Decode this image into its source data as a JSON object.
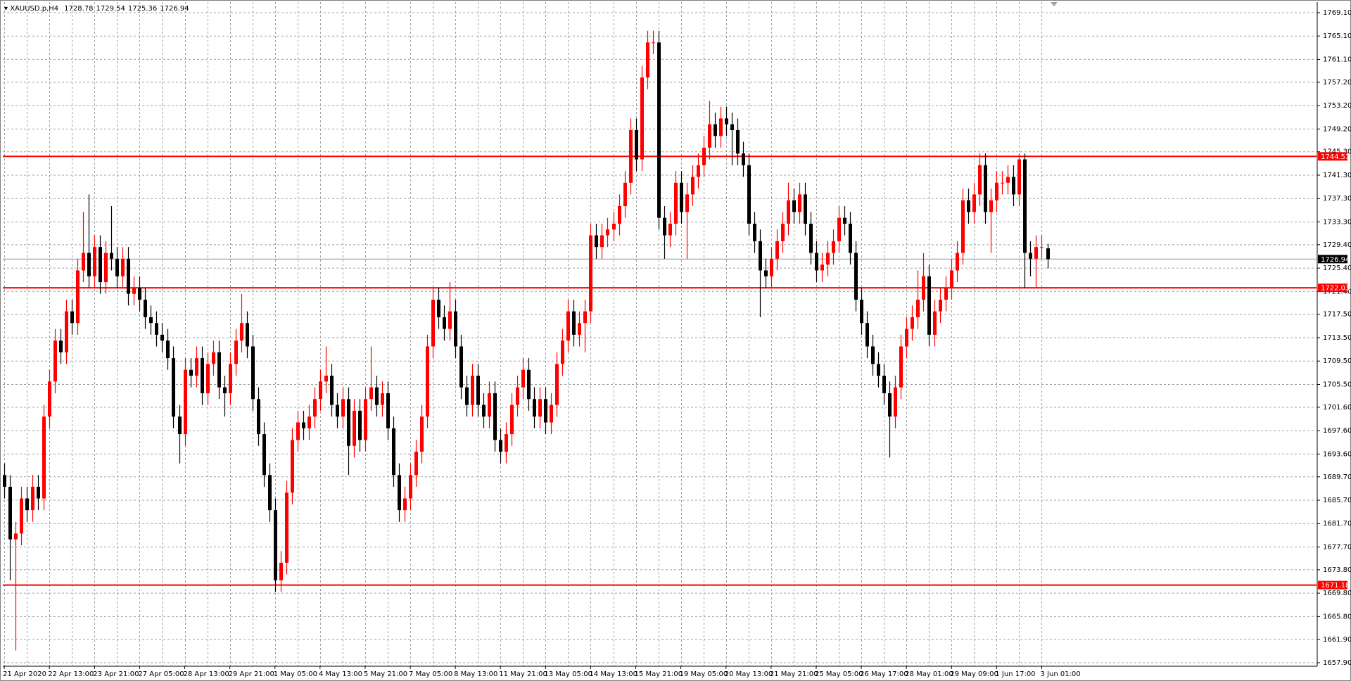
{
  "chart_data": {
    "type": "candlestick",
    "symbol": "XAUUSD.p,H4",
    "up_color": "#ff0000",
    "down_color": "#000000",
    "grid": true,
    "ylim": [
      1657.3,
      1770.9
    ],
    "yticks": [
      {
        "value": 1769.1,
        "label": "1769.10"
      },
      {
        "value": 1765.1,
        "label": "1765.10"
      },
      {
        "value": 1761.1,
        "label": "1761.10"
      },
      {
        "value": 1757.2,
        "label": "1757.20"
      },
      {
        "value": 1753.2,
        "label": "1753.20"
      },
      {
        "value": 1749.2,
        "label": "1749.20"
      },
      {
        "value": 1745.3,
        "label": "1745.30"
      },
      {
        "value": 1741.3,
        "label": "1741.30"
      },
      {
        "value": 1737.3,
        "label": "1737.30"
      },
      {
        "value": 1733.3,
        "label": "1733.30"
      },
      {
        "value": 1729.4,
        "label": "1729.40"
      },
      {
        "value": 1725.4,
        "label": "1725.40"
      },
      {
        "value": 1721.4,
        "label": "1721.40"
      },
      {
        "value": 1717.5,
        "label": "1717.50"
      },
      {
        "value": 1713.5,
        "label": "1713.50"
      },
      {
        "value": 1709.5,
        "label": "1709.50"
      },
      {
        "value": 1705.5,
        "label": "1705.50"
      },
      {
        "value": 1701.6,
        "label": "1701.60"
      },
      {
        "value": 1697.6,
        "label": "1697.60"
      },
      {
        "value": 1693.6,
        "label": "1693.60"
      },
      {
        "value": 1689.7,
        "label": "1689.70"
      },
      {
        "value": 1685.7,
        "label": "1685.70"
      },
      {
        "value": 1681.7,
        "label": "1681.70"
      },
      {
        "value": 1677.7,
        "label": "1677.70"
      },
      {
        "value": 1673.8,
        "label": "1673.80"
      },
      {
        "value": 1669.8,
        "label": "1669.80"
      },
      {
        "value": 1665.8,
        "label": "1665.80"
      },
      {
        "value": 1661.9,
        "label": "1661.90"
      },
      {
        "value": 1657.9,
        "label": "1657.90"
      }
    ],
    "hlines": [
      {
        "value": 1744.51,
        "color": "#ff0000"
      },
      {
        "value": 1726.94,
        "color": "#8497b0"
      },
      {
        "value": 1722.03,
        "color": "#ff0000"
      },
      {
        "value": 1671.18,
        "color": "#ff0000"
      }
    ],
    "categories": [
      "21 Apr 2020",
      null,
      null,
      null,
      null,
      null,
      null,
      null,
      "22 Apr 13:00",
      null,
      null,
      null,
      null,
      null,
      null,
      null,
      "23 Apr 21:00",
      null,
      null,
      null,
      null,
      null,
      null,
      null,
      "27 Apr 05:00",
      null,
      null,
      null,
      null,
      null,
      null,
      null,
      "28 Apr 13:00",
      null,
      null,
      null,
      null,
      null,
      null,
      null,
      "29 Apr 21:00",
      null,
      null,
      null,
      null,
      null,
      null,
      null,
      "1 May 05:00",
      null,
      null,
      null,
      null,
      null,
      null,
      null,
      "4 May 13:00",
      null,
      null,
      null,
      null,
      null,
      null,
      null,
      "5 May 21:00",
      null,
      null,
      null,
      null,
      null,
      null,
      null,
      "7 May 05:00",
      null,
      null,
      null,
      null,
      null,
      null,
      null,
      "8 May 13:00",
      null,
      null,
      null,
      null,
      null,
      null,
      null,
      "11 May 21:00",
      null,
      null,
      null,
      null,
      null,
      null,
      null,
      "13 May 05:00",
      null,
      null,
      null,
      null,
      null,
      null,
      null,
      "14 May 13:00",
      null,
      null,
      null,
      null,
      null,
      null,
      null,
      "15 May 21:00",
      null,
      null,
      null,
      null,
      null,
      null,
      null,
      "19 May 05:00",
      null,
      null,
      null,
      null,
      null,
      null,
      null,
      "20 May 13:00",
      null,
      null,
      null,
      null,
      null,
      null,
      null,
      "21 May 21:00",
      null,
      null,
      null,
      null,
      null,
      null,
      null,
      "25 May 05:00",
      null,
      null,
      null,
      null,
      null,
      null,
      null,
      "26 May 17:00",
      null,
      null,
      null,
      null,
      null,
      null,
      null,
      "28 May 01:00",
      null,
      null,
      null,
      null,
      null,
      null,
      null,
      "29 May 09:00",
      null,
      null,
      null,
      null,
      null,
      null,
      null,
      "1 Jun 17:00",
      null,
      null,
      null,
      null,
      null,
      null,
      null,
      "3 Jun 01:00",
      null
    ],
    "open": [
      1690,
      1688,
      1679,
      1680,
      1686,
      1684,
      1688,
      1686,
      1700,
      1706,
      1713,
      1711,
      1718,
      1716,
      1725,
      1728,
      1724,
      1729,
      1723,
      1728,
      1727,
      1724,
      1727,
      1721,
      1722,
      1720,
      1717,
      1716,
      1714,
      1713,
      1710,
      1700,
      1697,
      1708,
      1707,
      1710,
      1704,
      1709,
      1711,
      1705,
      1704,
      1709,
      1713,
      1716,
      1712,
      1703,
      1697,
      1690,
      1684,
      1672,
      1675,
      1687,
      1696,
      1699,
      1698,
      1700,
      1703,
      1706,
      1707,
      1702,
      1700,
      1703,
      1695,
      1701,
      1696,
      1703,
      1705,
      1702,
      1704,
      1698,
      1690,
      1684,
      1686,
      1690,
      1694,
      1700,
      1712,
      1720,
      1717,
      1715,
      1718,
      1712,
      1705,
      1702,
      1707,
      1702,
      1700,
      1704,
      1696,
      1694,
      1697,
      1702,
      1705,
      1708,
      1703,
      1700,
      1703,
      1699,
      1702,
      1709,
      1713,
      1718,
      1714,
      1716,
      1718,
      1731,
      1729,
      1731,
      1732,
      1733,
      1736,
      1740,
      1749,
      1744,
      1758,
      1764,
      1764,
      1734,
      1731,
      1733,
      1740,
      1735,
      1738,
      1741,
      1743,
      1746,
      1750,
      1748,
      1751,
      1750,
      1749,
      1745,
      1743,
      1733,
      1730,
      1725,
      1724,
      1727,
      1730,
      1733,
      1737,
      1735,
      1738,
      1733,
      1728,
      1725,
      1726,
      1728,
      1730,
      1734,
      1733,
      1728,
      1720,
      1716,
      1712,
      1709,
      1707,
      1704,
      1700,
      1705,
      1712,
      1715,
      1717,
      1720,
      1724,
      1714,
      1718,
      1720,
      1722,
      1725,
      1728,
      1737,
      1735,
      1738,
      1743,
      1735,
      1737,
      1740,
      1740,
      1741,
      1738,
      1744,
      1728,
      1727,
      1729,
      1728.78
    ],
    "high": [
      1692,
      1690,
      1682,
      1688,
      1688,
      1690,
      1690,
      1702,
      1708,
      1715,
      1715,
      1720,
      1720,
      1727,
      1735,
      1738,
      1731,
      1731,
      1730,
      1736,
      1729,
      1729,
      1729,
      1724,
      1724,
      1722,
      1719,
      1718,
      1716,
      1715,
      1712,
      1702,
      1710,
      1710,
      1712,
      1712,
      1711,
      1713,
      1713,
      1707,
      1711,
      1715,
      1721,
      1718,
      1714,
      1705,
      1699,
      1692,
      1686,
      1677,
      1689,
      1698,
      1701,
      1701,
      1702,
      1705,
      1708,
      1712,
      1709,
      1704,
      1705,
      1705,
      1703,
      1703,
      1705,
      1712,
      1707,
      1706,
      1706,
      1700,
      1692,
      1688,
      1692,
      1696,
      1702,
      1714,
      1722,
      1722,
      1719,
      1723,
      1720,
      1714,
      1707,
      1709,
      1709,
      1704,
      1706,
      1706,
      1698,
      1699,
      1704,
      1707,
      1710,
      1710,
      1705,
      1705,
      1705,
      1704,
      1711,
      1715,
      1720,
      1720,
      1718,
      1720,
      1733,
      1733,
      1733,
      1734,
      1735,
      1738,
      1742,
      1751,
      1751,
      1760,
      1766,
      1766,
      1766,
      1736,
      1735,
      1742,
      1742,
      1740,
      1743,
      1745,
      1748,
      1754,
      1752,
      1753,
      1753,
      1752,
      1751,
      1747,
      1745,
      1735,
      1732,
      1727,
      1729,
      1732,
      1735,
      1740,
      1739,
      1740,
      1740,
      1735,
      1730,
      1728,
      1730,
      1732,
      1736,
      1736,
      1735,
      1730,
      1722,
      1718,
      1714,
      1711,
      1709,
      1706,
      1707,
      1714,
      1717,
      1719,
      1725,
      1728,
      1726,
      1720,
      1722,
      1724,
      1727,
      1730,
      1739,
      1739,
      1740,
      1745,
      1745,
      1739,
      1742,
      1742,
      1743,
      1743,
      1745,
      1745,
      1730,
      1731,
      1731,
      1729.54
    ],
    "low": [
      1686,
      1672,
      1660,
      1678,
      1682,
      1682,
      1684,
      1684,
      1698,
      1704,
      1709,
      1709,
      1714,
      1714,
      1723,
      1722,
      1722,
      1721,
      1721,
      1725,
      1722,
      1722,
      1719,
      1719,
      1718,
      1715,
      1714,
      1712,
      1711,
      1708,
      1698,
      1692,
      1695,
      1705,
      1705,
      1702,
      1702,
      1707,
      1703,
      1700,
      1702,
      1707,
      1711,
      1710,
      1701,
      1695,
      1688,
      1682,
      1670,
      1670,
      1673,
      1685,
      1694,
      1696,
      1696,
      1698,
      1701,
      1704,
      1700,
      1698,
      1698,
      1690,
      1693,
      1694,
      1694,
      1701,
      1700,
      1700,
      1696,
      1688,
      1682,
      1682,
      1684,
      1688,
      1692,
      1698,
      1710,
      1715,
      1713,
      1713,
      1710,
      1703,
      1700,
      1700,
      1700,
      1698,
      1698,
      1694,
      1692,
      1692,
      1695,
      1700,
      1703,
      1701,
      1698,
      1698,
      1697,
      1697,
      1700,
      1707,
      1711,
      1712,
      1712,
      1711,
      1716,
      1727,
      1727,
      1729,
      1730,
      1731,
      1734,
      1738,
      1742,
      1742,
      1756,
      1762,
      1732,
      1727,
      1729,
      1731,
      1733,
      1727,
      1736,
      1739,
      1741,
      1744,
      1746,
      1746,
      1748,
      1743,
      1743,
      1741,
      1731,
      1728,
      1717,
      1722,
      1722,
      1725,
      1728,
      1731,
      1733,
      1733,
      1731,
      1726,
      1723,
      1723,
      1724,
      1726,
      1728,
      1731,
      1726,
      1718,
      1714,
      1710,
      1707,
      1705,
      1702,
      1693,
      1698,
      1703,
      1710,
      1713,
      1715,
      1718,
      1712,
      1712,
      1716,
      1718,
      1720,
      1723,
      1726,
      1733,
      1733,
      1736,
      1733,
      1728,
      1735,
      1738,
      1738,
      1736,
      1736,
      1722,
      1724,
      1722,
      1727,
      1725.36
    ],
    "close": [
      1688,
      1679,
      1680,
      1686,
      1684,
      1688,
      1686,
      1700,
      1706,
      1713,
      1711,
      1718,
      1716,
      1725,
      1728,
      1724,
      1729,
      1723,
      1728,
      1727,
      1724,
      1727,
      1721,
      1722,
      1720,
      1717,
      1716,
      1714,
      1713,
      1710,
      1700,
      1697,
      1708,
      1707,
      1710,
      1704,
      1709,
      1711,
      1705,
      1704,
      1709,
      1713,
      1716,
      1712,
      1703,
      1697,
      1690,
      1684,
      1672,
      1675,
      1687,
      1696,
      1699,
      1698,
      1700,
      1703,
      1706,
      1707,
      1702,
      1700,
      1703,
      1695,
      1701,
      1696,
      1703,
      1705,
      1702,
      1704,
      1698,
      1690,
      1684,
      1686,
      1690,
      1694,
      1700,
      1712,
      1720,
      1717,
      1715,
      1718,
      1712,
      1705,
      1702,
      1707,
      1702,
      1700,
      1704,
      1696,
      1694,
      1697,
      1702,
      1705,
      1708,
      1703,
      1700,
      1703,
      1699,
      1702,
      1709,
      1713,
      1718,
      1714,
      1716,
      1718,
      1731,
      1729,
      1731,
      1732,
      1733,
      1736,
      1740,
      1749,
      1744,
      1758,
      1764,
      1764,
      1734,
      1731,
      1733,
      1740,
      1735,
      1738,
      1741,
      1743,
      1746,
      1750,
      1748,
      1751,
      1750,
      1749,
      1745,
      1743,
      1733,
      1730,
      1725,
      1724,
      1727,
      1730,
      1733,
      1737,
      1735,
      1738,
      1733,
      1728,
      1725,
      1726,
      1728,
      1730,
      1734,
      1733,
      1728,
      1720,
      1716,
      1712,
      1709,
      1707,
      1704,
      1700,
      1705,
      1712,
      1715,
      1717,
      1720,
      1724,
      1714,
      1718,
      1720,
      1722,
      1725,
      1728,
      1737,
      1735,
      1738,
      1743,
      1735,
      1737,
      1740,
      1740,
      1741,
      1738,
      1744,
      1728,
      1727,
      1729,
      1729,
      1726.94
    ]
  }
}
